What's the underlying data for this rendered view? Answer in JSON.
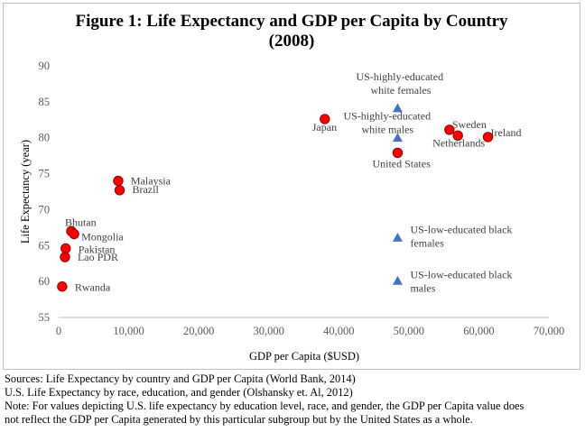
{
  "chart_data": {
    "type": "scatter",
    "title": [
      "Figure 1: Life Expectancy and GDP per Capita by Country",
      "(2008)"
    ],
    "xlabel": "GDP per Capita ($USD)",
    "ylabel": "Life Expectancy (year)",
    "xlim": [
      0,
      70000
    ],
    "ylim": [
      55,
      90
    ],
    "xticks": [
      0,
      10000,
      20000,
      30000,
      40000,
      50000,
      60000,
      70000
    ],
    "xtick_labels": [
      "0",
      "10,000",
      "20,000",
      "30,000",
      "40,000",
      "50,000",
      "60,000",
      "70,000"
    ],
    "yticks": [
      55,
      60,
      65,
      70,
      75,
      80,
      85,
      90
    ],
    "ytick_labels": [
      "55",
      "60",
      "65",
      "70",
      "75",
      "80",
      "85",
      "90"
    ],
    "grid": false,
    "colors": {
      "country_marker": "#ff0000",
      "country_edge": "#8b0000",
      "subgroup_marker": "#4472c4"
    },
    "series": [
      {
        "marker": "circle",
        "points": [
          {
            "label": "Japan",
            "x": 38000,
            "y": 82.6
          },
          {
            "label": "United States",
            "x": 48400,
            "y": 77.9
          },
          {
            "label": "Sweden",
            "x": 55800,
            "y": 81.1
          },
          {
            "label": "Netherlands",
            "x": 57000,
            "y": 80.3
          },
          {
            "label": "Ireland",
            "x": 61300,
            "y": 80.1
          },
          {
            "label": "Malaysia",
            "x": 8500,
            "y": 74.0
          },
          {
            "label": "Brazil",
            "x": 8700,
            "y": 72.7
          },
          {
            "label": "Bhutan",
            "x": 1800,
            "y": 67.0
          },
          {
            "label": "Mongolia",
            "x": 2200,
            "y": 66.6
          },
          {
            "label": "Pakistan",
            "x": 1000,
            "y": 64.6
          },
          {
            "label": "Lao PDR",
            "x": 900,
            "y": 63.4
          },
          {
            "label": "Rwanda",
            "x": 500,
            "y": 59.3
          }
        ]
      },
      {
        "marker": "triangle",
        "points": [
          {
            "label": [
              "US-highly-educated",
              "white females"
            ],
            "x": 48400,
            "y": 84.1
          },
          {
            "label": [
              "US-highly-educated",
              "white males"
            ],
            "x": 48400,
            "y": 80.0
          },
          {
            "label": [
              "US-low-educated black",
              "females"
            ],
            "x": 48400,
            "y": 66.1
          },
          {
            "label": [
              "US-low-educated black",
              "males"
            ],
            "x": 48400,
            "y": 60.1
          }
        ]
      }
    ]
  },
  "notes": [
    "Sources: Life Expectancy by country and GDP per Capita (World Bank, 2014)",
    "U.S. Life Expectancy by race, education, and gender (Olshansky et. Al, 2012)",
    "Note: For values depicting U.S. life expectancy by education level, race, and gender, the GDP per Capita value does",
    "not reflect the GDP per Capita generated by this particular subgroup but by the United States as a whole."
  ]
}
